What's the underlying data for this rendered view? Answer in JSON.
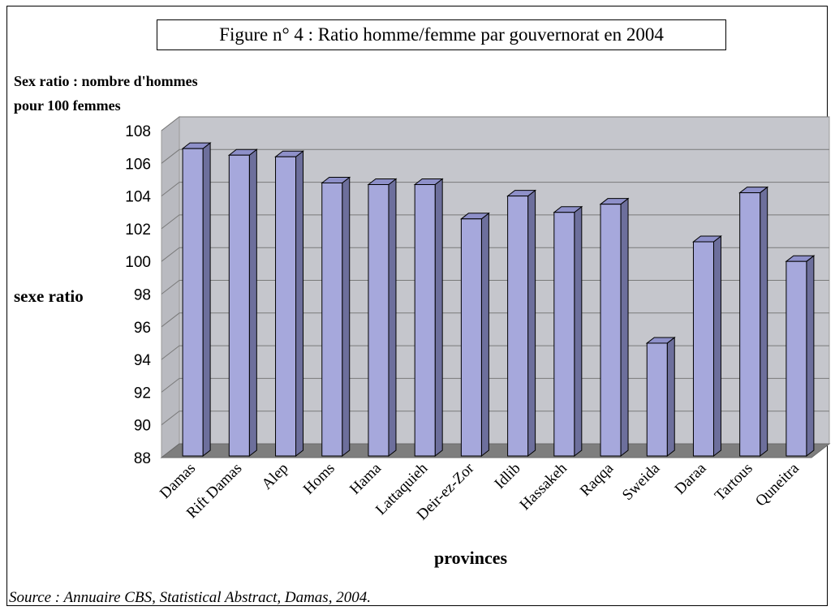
{
  "chart_data": {
    "type": "bar",
    "title": "Figure n° 4 : Ratio homme/femme par gouvernorat en 2004",
    "unit_label": [
      "Sex ratio : nombre d'hommes",
      "pour 100 femmes"
    ],
    "ylabel": "sexe ratio",
    "xlabel": "provinces",
    "ylim": [
      88,
      108
    ],
    "yticks": [
      88,
      90,
      92,
      94,
      96,
      98,
      100,
      102,
      104,
      106,
      108
    ],
    "grid": true,
    "three_d": true,
    "categories": [
      "Damas",
      "Rift Damas",
      "Alep",
      "Homs",
      "Hama",
      "Lattaquieh",
      "Deir-ez-Zor",
      "Idlib",
      "Hassakeh",
      "Raqqa",
      "Sweida",
      "Daraa",
      "Tartous",
      "Quneitra"
    ],
    "values": [
      106.9,
      106.5,
      106.4,
      104.8,
      104.7,
      104.7,
      102.6,
      104.0,
      103.0,
      103.5,
      95.0,
      101.2,
      104.2,
      100.0
    ],
    "colors": {
      "bar_front": "#a6a8dc",
      "bar_side": "#6d6f9c",
      "bar_top": "#8e90c9",
      "wall": "#c5c6cc",
      "floor": "#7e7e7e",
      "gridline": "#7a7a7a"
    }
  },
  "source": "Source : Annuaire CBS, Statistical Abstract, Damas, 2004."
}
